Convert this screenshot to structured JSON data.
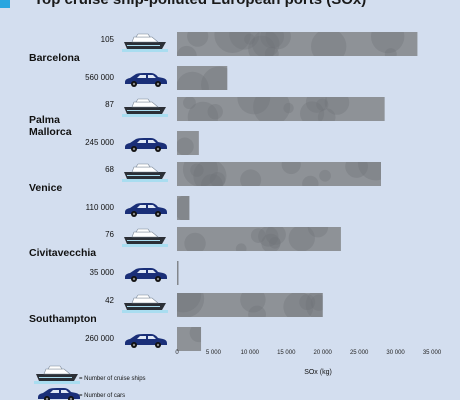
{
  "title": "Top cruise ship-polluted European ports (SOx)",
  "chart_data": {
    "type": "bar",
    "orientation": "horizontal",
    "categories": [
      "Barcelona",
      "Palma Mallorca",
      "Venice",
      "Civitavecchia",
      "Southampton"
    ],
    "series": [
      {
        "name": "Number of cruise ships",
        "counts": [
          "105",
          "87",
          "68",
          "76",
          "42"
        ],
        "values": [
          33000,
          28500,
          28000,
          22500,
          20000
        ]
      },
      {
        "name": "Number of cars",
        "counts": [
          "560 000",
          "245 000",
          "110 000",
          "35 000",
          "260 000"
        ],
        "values": [
          6900,
          3000,
          1700,
          100,
          3300
        ]
      }
    ],
    "xlabel": "SOx (kg)",
    "xlim": [
      0,
      35000
    ],
    "xticks": [
      "0",
      "5 000",
      "10 000",
      "15 000",
      "20 000",
      "25 000",
      "30 000",
      "35 000"
    ],
    "grid": false,
    "legend": "bottom-left"
  },
  "legend": {
    "ships_label": "= Number of cruise ships",
    "cars_label": "= Number of cars"
  },
  "colors": {
    "background": "#d3deef",
    "bar": "#8e9297",
    "bar_dark": "#7b7f84",
    "ship_hull": "#2b2f36",
    "ship_water": "#a9ddf0",
    "car": "#1a2f78"
  }
}
